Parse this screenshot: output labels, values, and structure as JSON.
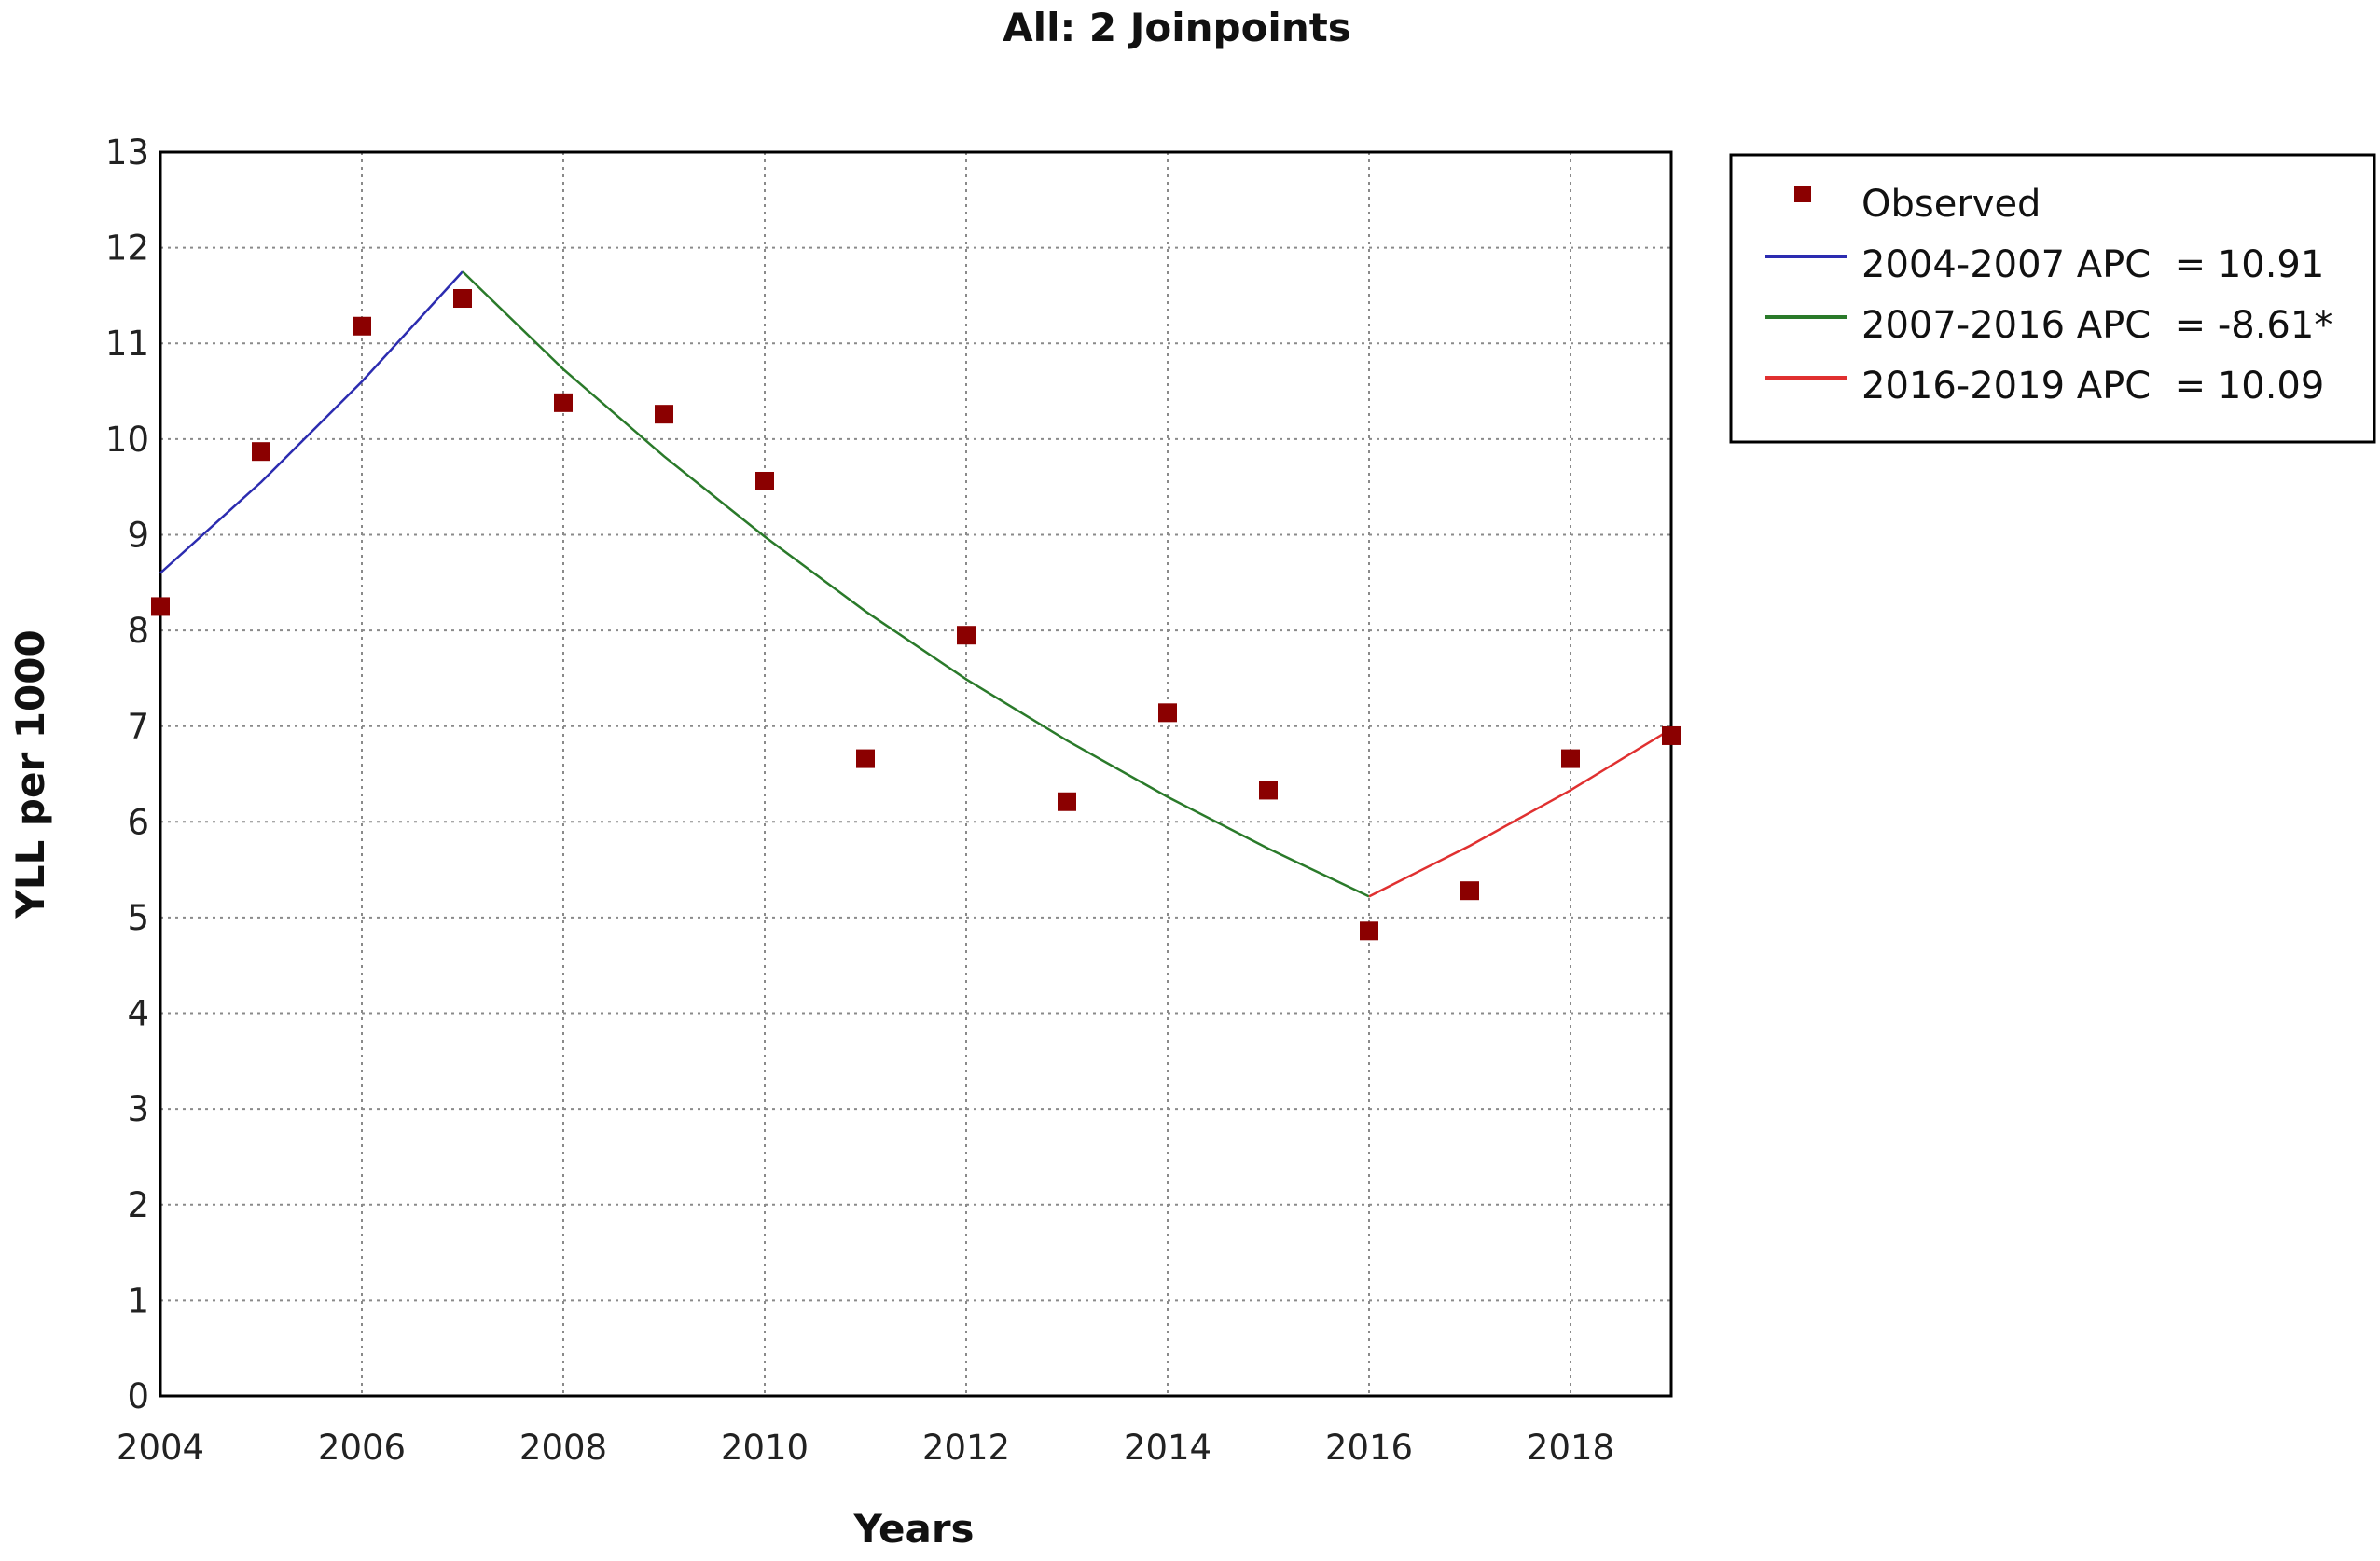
{
  "chart_data": {
    "type": "line",
    "title": "All: 2 Joinpoints",
    "xlabel": "Years",
    "ylabel": "YLL per 1000",
    "xlim": [
      2004,
      2019
    ],
    "ylim": [
      0,
      13
    ],
    "x_ticks": [
      "2004",
      "2006",
      "2008",
      "2010",
      "2012",
      "2014",
      "2016",
      "2018"
    ],
    "y_ticks": [
      "0",
      "1",
      "2",
      "3",
      "4",
      "5",
      "6",
      "7",
      "8",
      "9",
      "10",
      "11",
      "12",
      "13"
    ],
    "grid": true,
    "legend_position": "right",
    "observed": {
      "name": "Observed",
      "color": "#8b0000",
      "x": [
        2004,
        2005,
        2006,
        2007,
        2008,
        2009,
        2010,
        2011,
        2012,
        2013,
        2014,
        2015,
        2016,
        2017,
        2018,
        2019
      ],
      "y": [
        8.25,
        9.87,
        11.18,
        11.47,
        10.38,
        10.26,
        9.56,
        6.66,
        7.95,
        6.21,
        7.14,
        6.33,
        4.86,
        5.28,
        6.66,
        6.9
      ]
    },
    "series": [
      {
        "name": "2004-2007 APC  = 10.91",
        "color": "#2c2cb0",
        "x": [
          2004,
          2005,
          2006,
          2007
        ],
        "y": [
          8.6,
          9.55,
          10.6,
          11.75
        ]
      },
      {
        "name": "2007-2016 APC  = -8.61*",
        "color": "#2a7a2a",
        "x": [
          2007,
          2008,
          2009,
          2010,
          2011,
          2012,
          2013,
          2014,
          2015,
          2016
        ],
        "y": [
          11.75,
          10.73,
          9.82,
          8.98,
          8.2,
          7.49,
          6.85,
          6.26,
          5.72,
          5.22
        ]
      },
      {
        "name": "2016-2019 APC  = 10.09",
        "color": "#e03030",
        "x": [
          2016,
          2017,
          2018,
          2019
        ],
        "y": [
          5.22,
          5.75,
          6.33,
          6.97
        ]
      }
    ]
  }
}
